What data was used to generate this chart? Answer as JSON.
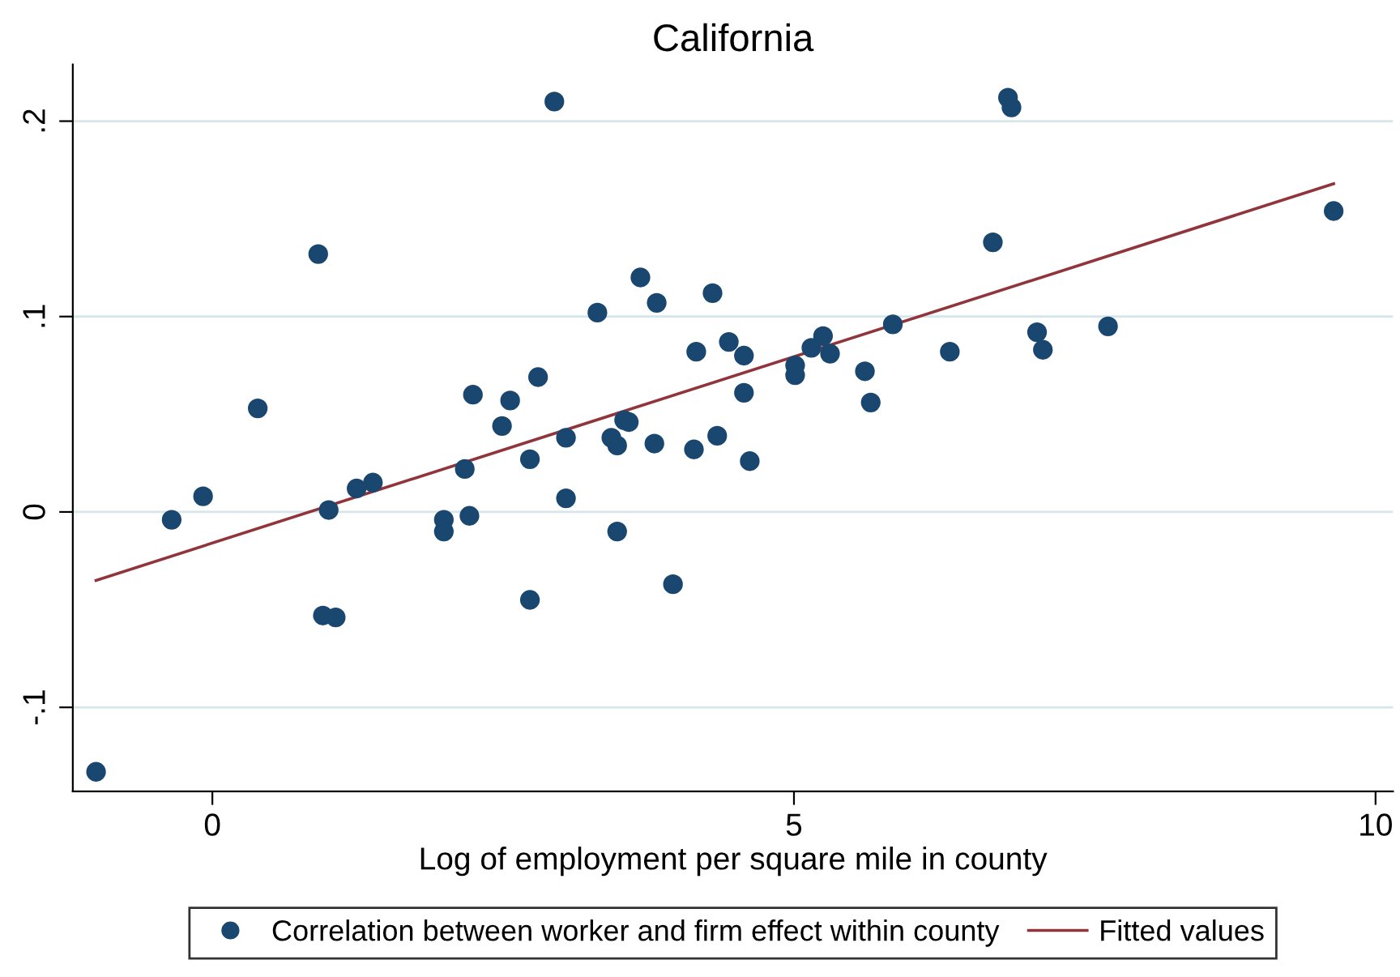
{
  "chart_data": {
    "type": "scatter",
    "title": "California",
    "xlabel": "Log of employment per square mile in county",
    "xlim": [
      -1.2,
      10.15
    ],
    "ylim": [
      -0.143,
      0.229
    ],
    "xticks": [
      0,
      5,
      10
    ],
    "yticks": [
      {
        "value": -0.1,
        "label": "-.1"
      },
      {
        "value": 0,
        "label": "0"
      },
      {
        "value": 0.1,
        "label": ".1"
      },
      {
        "value": 0.2,
        "label": ".2"
      }
    ],
    "grid": "y",
    "legend": "bottom",
    "marker": "circle",
    "series": [
      {
        "name": "Correlation between worker and firm effect within county",
        "color": "#1a476f",
        "x": [
          -1.0,
          -0.35,
          -0.08,
          0.39,
          0.91,
          0.95,
          1.06,
          1.0,
          1.24,
          1.38,
          1.99,
          1.99,
          2.17,
          2.21,
          2.24,
          2.49,
          2.56,
          2.73,
          2.73,
          2.8,
          2.94,
          3.04,
          3.04,
          3.31,
          3.43,
          3.48,
          3.48,
          3.54,
          3.58,
          3.68,
          3.8,
          3.82,
          3.96,
          4.14,
          4.16,
          4.3,
          4.34,
          4.44,
          4.57,
          4.57,
          4.62,
          5.01,
          5.01,
          5.15,
          5.25,
          5.31,
          5.61,
          5.66,
          5.85,
          6.34,
          6.71,
          6.84,
          6.87,
          7.09,
          7.14,
          7.7,
          9.64
        ],
        "values": [
          -0.133,
          -0.004,
          0.008,
          0.053,
          0.132,
          -0.053,
          -0.054,
          0.001,
          0.012,
          0.015,
          -0.004,
          -0.01,
          0.022,
          -0.002,
          0.06,
          0.044,
          0.057,
          0.027,
          -0.045,
          0.069,
          0.21,
          0.007,
          0.038,
          0.102,
          0.038,
          0.034,
          -0.01,
          0.047,
          0.046,
          0.12,
          0.035,
          0.107,
          -0.037,
          0.032,
          0.082,
          0.112,
          0.039,
          0.087,
          0.061,
          0.08,
          0.026,
          0.07,
          0.075,
          0.084,
          0.09,
          0.081,
          0.072,
          0.056,
          0.096,
          0.082,
          0.138,
          0.212,
          0.207,
          0.092,
          0.083,
          0.095,
          0.154
        ]
      },
      {
        "name": "Fitted values",
        "type": "line",
        "color": "#90353b",
        "marker": "none",
        "x": [
          -1.0,
          9.64
        ],
        "values": [
          -0.035,
          0.168
        ]
      }
    ]
  }
}
